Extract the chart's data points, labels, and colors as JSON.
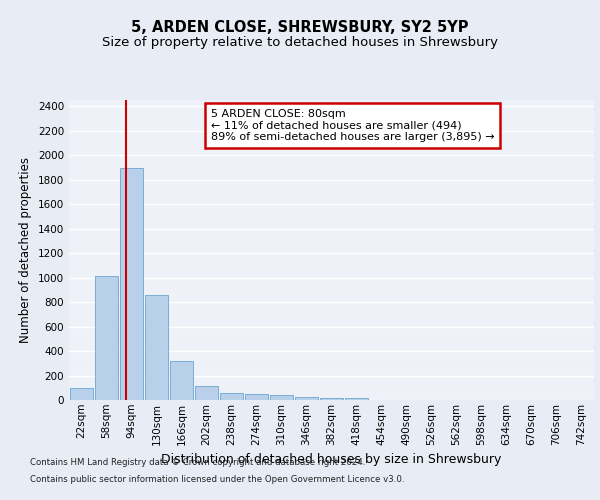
{
  "title": "5, ARDEN CLOSE, SHREWSBURY, SY2 5YP",
  "subtitle": "Size of property relative to detached houses in Shrewsbury",
  "xlabel": "Distribution of detached houses by size in Shrewsbury",
  "ylabel": "Number of detached properties",
  "footnote1": "Contains HM Land Registry data © Crown copyright and database right 2024.",
  "footnote2": "Contains public sector information licensed under the Open Government Licence v3.0.",
  "bar_labels": [
    "22sqm",
    "58sqm",
    "94sqm",
    "130sqm",
    "166sqm",
    "202sqm",
    "238sqm",
    "274sqm",
    "310sqm",
    "346sqm",
    "382sqm",
    "418sqm",
    "454sqm",
    "490sqm",
    "526sqm",
    "562sqm",
    "598sqm",
    "634sqm",
    "670sqm",
    "706sqm",
    "742sqm"
  ],
  "bar_values": [
    100,
    1010,
    1895,
    860,
    315,
    115,
    60,
    52,
    42,
    25,
    20,
    15,
    0,
    0,
    0,
    0,
    0,
    0,
    0,
    0,
    0
  ],
  "bar_color": "#b8d0ea",
  "bar_edge_color": "#7aadd4",
  "vline_x": 1.78,
  "vline_color": "#cc0000",
  "annotation_text": "5 ARDEN CLOSE: 80sqm\n← 11% of detached houses are smaller (494)\n89% of semi-detached houses are larger (3,895) →",
  "annotation_box_color": "white",
  "annotation_box_edge_color": "#cc0000",
  "ylim": [
    0,
    2450
  ],
  "yticks": [
    0,
    200,
    400,
    600,
    800,
    1000,
    1200,
    1400,
    1600,
    1800,
    2000,
    2200,
    2400
  ],
  "bg_color": "#e8edf5",
  "plot_bg_color": "#eef2f8",
  "grid_color": "#ffffff",
  "title_fontsize": 10.5,
  "subtitle_fontsize": 9.5,
  "ylabel_fontsize": 8.5,
  "xlabel_fontsize": 9,
  "tick_fontsize": 7.5,
  "annot_fontsize": 8
}
